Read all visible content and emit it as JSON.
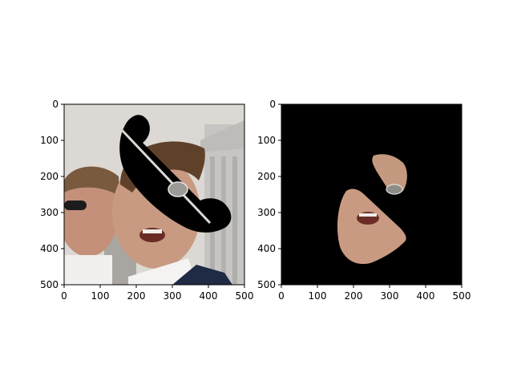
{
  "chart_data": [
    {
      "type": "image",
      "description_visible": "photo panel",
      "xlim": [
        0,
        500
      ],
      "ylim": [
        500,
        0
      ],
      "x_ticks": [
        0,
        100,
        200,
        300,
        400,
        500
      ],
      "y_ticks": [
        0,
        100,
        200,
        300,
        400,
        500
      ],
      "x_tick_labels": [
        "0",
        "100",
        "200",
        "300",
        "400",
        "500"
      ],
      "y_tick_labels": [
        "0",
        "100",
        "200",
        "300",
        "400",
        "500"
      ],
      "grid": false
    },
    {
      "type": "image",
      "description_visible": "masked panel",
      "xlim": [
        0,
        500
      ],
      "ylim": [
        500,
        0
      ],
      "x_ticks": [
        0,
        100,
        200,
        300,
        400,
        500
      ],
      "y_ticks": [
        0,
        100,
        200,
        300,
        400,
        500
      ],
      "x_tick_labels": [
        "0",
        "100",
        "200",
        "300",
        "400",
        "500"
      ],
      "y_tick_labels": [
        "0",
        "100",
        "200",
        "300",
        "400",
        "500"
      ],
      "grid": false
    }
  ],
  "colors": {
    "axes": "#000000",
    "background": "#ffffff",
    "mask_black": "#000000",
    "sky": "#d9d6d2",
    "building": "#c9c8c6",
    "skin": "#c99a82",
    "hair": "#6a4a30",
    "suit": "#1f2a44"
  }
}
